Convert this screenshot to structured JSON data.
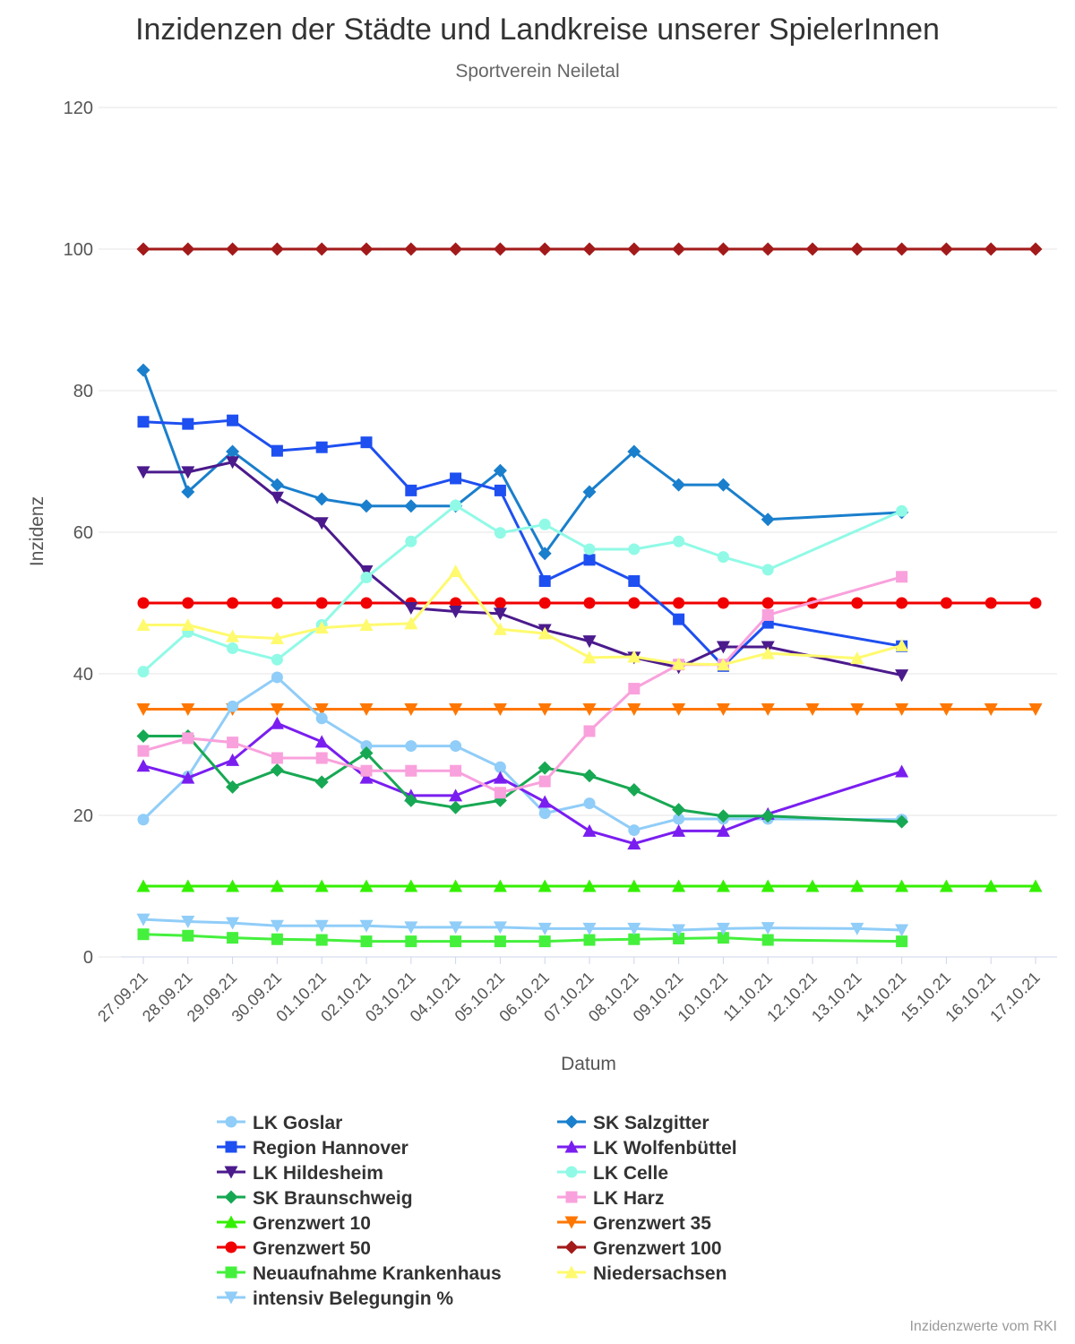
{
  "title": "Inzidenzen der Städte und Landkreise unserer SpielerInnen",
  "subtitle": "Sportverein Neiletal",
  "credits": "Inzidenzwerte vom RKI",
  "chart_data": {
    "type": "line",
    "title": "Inzidenzen der Städte und Landkreise unserer SpielerInnen",
    "subtitle": "Sportverein Neiletal",
    "xlabel": "Datum",
    "ylabel": "Inzidenz",
    "ylim": [
      0,
      120
    ],
    "yticks": [
      0,
      20,
      40,
      60,
      80,
      100,
      120
    ],
    "grid": true,
    "legend": "bottom",
    "categories": [
      "27.09.21",
      "28.09.21",
      "29.09.21",
      "30.09.21",
      "01.10.21",
      "02.10.21",
      "03.10.21",
      "04.10.21",
      "05.10.21",
      "06.10.21",
      "07.10.21",
      "08.10.21",
      "09.10.21",
      "10.10.21",
      "11.10.21",
      "12.10.21",
      "13.10.21",
      "14.10.21",
      "15.10.21",
      "16.10.21",
      "17.10.21"
    ],
    "series": [
      {
        "name": "LK Goslar",
        "color": "#90CDF8",
        "marker": "circle",
        "values": [
          19.4,
          25.5,
          35.4,
          39.5,
          33.7,
          29.8,
          29.8,
          29.8,
          26.8,
          20.3,
          21.7,
          17.9,
          19.5,
          19.5,
          19.5,
          null,
          null,
          19.4,
          null,
          null,
          null
        ]
      },
      {
        "name": "SK Salzgitter",
        "color": "#1A7FCC",
        "marker": "diamond",
        "values": [
          82.9,
          65.7,
          71.4,
          66.7,
          64.7,
          63.7,
          63.7,
          63.7,
          68.7,
          57.0,
          65.7,
          71.4,
          66.7,
          66.7,
          61.8,
          null,
          null,
          62.8,
          null,
          null,
          null
        ]
      },
      {
        "name": "Region Hannover",
        "color": "#1E4FF0",
        "marker": "square",
        "values": [
          75.6,
          75.3,
          75.8,
          71.5,
          72.0,
          72.7,
          65.9,
          67.6,
          65.9,
          53.1,
          56.1,
          53.1,
          47.7,
          41.1,
          47.2,
          null,
          null,
          43.9,
          null,
          null,
          null
        ]
      },
      {
        "name": "LK Wolfenbüttel",
        "color": "#7A1EF0",
        "marker": "triangle",
        "values": [
          27.0,
          25.3,
          27.8,
          33.0,
          30.4,
          25.3,
          22.8,
          22.8,
          25.3,
          21.9,
          17.8,
          16.0,
          17.8,
          17.8,
          20.2,
          null,
          null,
          26.2,
          null,
          null,
          null
        ]
      },
      {
        "name": "LK Hildesheim",
        "color": "#4B1A8C",
        "marker": "triangle-down",
        "values": [
          68.5,
          68.5,
          69.9,
          64.9,
          61.3,
          54.5,
          49.3,
          48.8,
          48.5,
          46.2,
          44.6,
          42.3,
          40.9,
          43.8,
          43.8,
          null,
          null,
          39.8,
          null,
          null,
          null
        ]
      },
      {
        "name": "LK Celle",
        "color": "#90FAE6",
        "marker": "circle",
        "values": [
          40.3,
          45.9,
          43.6,
          42.0,
          46.9,
          53.6,
          58.7,
          63.8,
          59.9,
          61.1,
          57.6,
          57.6,
          58.7,
          56.5,
          54.7,
          null,
          null,
          63.0,
          null,
          null,
          null
        ]
      },
      {
        "name": "SK Braunschweig",
        "color": "#17A853",
        "marker": "diamond",
        "values": [
          31.2,
          31.2,
          24.0,
          26.4,
          24.7,
          28.8,
          22.1,
          21.1,
          22.1,
          26.7,
          25.6,
          23.6,
          20.8,
          19.9,
          19.9,
          null,
          null,
          19.1,
          null,
          null,
          null
        ]
      },
      {
        "name": "LK Harz",
        "color": "#F9A1DC",
        "marker": "square",
        "values": [
          29.1,
          30.9,
          30.3,
          28.1,
          28.1,
          26.3,
          26.3,
          26.3,
          23.2,
          24.8,
          31.9,
          37.9,
          41.3,
          41.3,
          48.3,
          null,
          null,
          53.7,
          null,
          null,
          null
        ]
      },
      {
        "name": "Grenzwert 10",
        "color": "#33F000",
        "marker": "triangle",
        "values": [
          10,
          10,
          10,
          10,
          10,
          10,
          10,
          10,
          10,
          10,
          10,
          10,
          10,
          10,
          10,
          10,
          10,
          10,
          10,
          10,
          10
        ]
      },
      {
        "name": "Grenzwert 35",
        "color": "#FF7700",
        "marker": "triangle-down",
        "values": [
          35,
          35,
          35,
          35,
          35,
          35,
          35,
          35,
          35,
          35,
          35,
          35,
          35,
          35,
          35,
          35,
          35,
          35,
          35,
          35,
          35
        ]
      },
      {
        "name": "Grenzwert 50",
        "color": "#F00000",
        "marker": "circle",
        "values": [
          50,
          50,
          50,
          50,
          50,
          50,
          50,
          50,
          50,
          50,
          50,
          50,
          50,
          50,
          50,
          50,
          50,
          50,
          50,
          50,
          50
        ]
      },
      {
        "name": "Grenzwert 100",
        "color": "#A31A1A",
        "marker": "diamond",
        "values": [
          100,
          100,
          100,
          100,
          100,
          100,
          100,
          100,
          100,
          100,
          100,
          100,
          100,
          100,
          100,
          100,
          100,
          100,
          100,
          100,
          100
        ]
      },
      {
        "name": "Neuaufnahme Krankenhaus",
        "color": "#44F03C",
        "marker": "square",
        "values": [
          3.2,
          3.0,
          2.7,
          2.5,
          2.4,
          2.2,
          2.2,
          2.2,
          2.2,
          2.2,
          2.4,
          2.5,
          2.6,
          2.7,
          2.4,
          null,
          null,
          2.2,
          null,
          null,
          null
        ]
      },
      {
        "name": "Niedersachsen",
        "color": "#FFFA6E",
        "marker": "triangle",
        "values": [
          46.9,
          46.9,
          45.3,
          45.0,
          46.5,
          46.9,
          47.1,
          54.5,
          46.3,
          45.7,
          42.3,
          42.4,
          41.4,
          41.3,
          42.9,
          null,
          42.2,
          44.0,
          null,
          null,
          null
        ]
      },
      {
        "name": "intensiv Belegungin %",
        "color": "#90CDF8",
        "marker": "triangle-down",
        "values": [
          5.3,
          5.0,
          4.8,
          4.4,
          4.4,
          4.4,
          4.2,
          4.2,
          4.2,
          4.0,
          4.0,
          4.0,
          3.8,
          4.0,
          4.1,
          null,
          4.0,
          3.8,
          null,
          null,
          null
        ]
      }
    ]
  }
}
